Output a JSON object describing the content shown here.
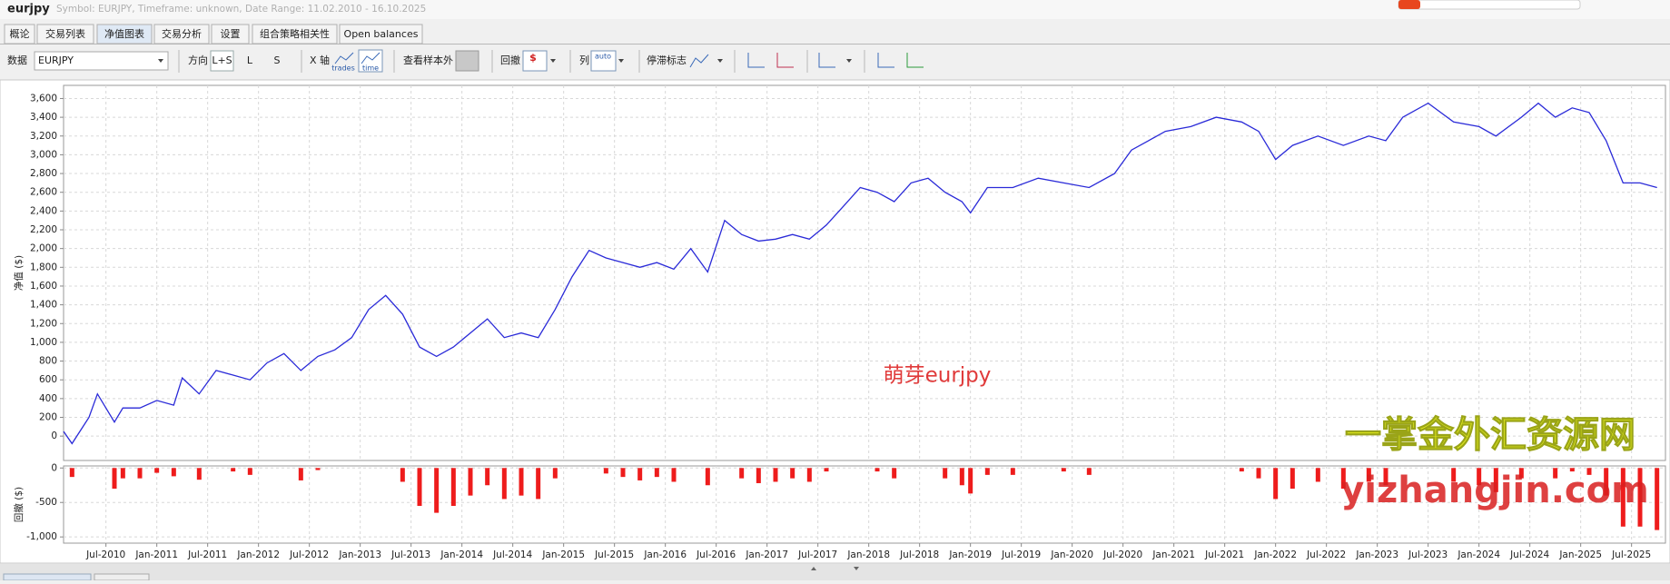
{
  "header": {
    "title": "eurjpy",
    "subtitle": "Symbol: EURJPY, Timeframe: unknown, Date Range: 11.02.2010 - 16.10.2025"
  },
  "tabs": [
    "概论",
    "交易列表",
    "净值图表",
    "交易分析",
    "设置",
    "组合策略相关性",
    "Open balances"
  ],
  "toolbar": {
    "data_label": "数据",
    "symbol": "EURJPY",
    "direction_label": "方向",
    "directions": [
      "L+S",
      "L",
      "S"
    ],
    "x_axis_label": "X 轴",
    "x_axis_options": [
      "trades",
      "time"
    ],
    "out_of_sample_label": "查看样本外",
    "drawdown_label": "回撤",
    "drawdown_icon": "$",
    "column_label": "列",
    "column_option": "auto",
    "stagnation_label": "停滞标志"
  },
  "chart_data": [
    {
      "type": "line",
      "y_label": "净值 ($)",
      "color": "#2a2ad8",
      "grid": true,
      "x": [
        "2010-02",
        "2010-03",
        "2010-05",
        "2010-06",
        "2010-08",
        "2010-09",
        "2010-11",
        "2011-01",
        "2011-03",
        "2011-04",
        "2011-06",
        "2011-08",
        "2011-10",
        "2011-12",
        "2012-02",
        "2012-04",
        "2012-06",
        "2012-08",
        "2012-10",
        "2012-12",
        "2013-02",
        "2013-04",
        "2013-06",
        "2013-08",
        "2013-10",
        "2013-12",
        "2014-02",
        "2014-04",
        "2014-06",
        "2014-08",
        "2014-10",
        "2014-12",
        "2015-02",
        "2015-04",
        "2015-06",
        "2015-08",
        "2015-10",
        "2015-12",
        "2016-02",
        "2016-04",
        "2016-06",
        "2016-08",
        "2016-10",
        "2016-12",
        "2017-02",
        "2017-04",
        "2017-06",
        "2017-08",
        "2017-10",
        "2017-12",
        "2018-02",
        "2018-04",
        "2018-06",
        "2018-08",
        "2018-10",
        "2018-12",
        "2019-01",
        "2019-03",
        "2019-06",
        "2019-09",
        "2019-12",
        "2020-03",
        "2020-06",
        "2020-08",
        "2020-10",
        "2020-12",
        "2021-03",
        "2021-06",
        "2021-09",
        "2021-11",
        "2022-01",
        "2022-03",
        "2022-06",
        "2022-09",
        "2022-12",
        "2023-02",
        "2023-04",
        "2023-07",
        "2023-10",
        "2024-01",
        "2024-03",
        "2024-06",
        "2024-08",
        "2024-10",
        "2024-12",
        "2025-02",
        "2025-04",
        "2025-06",
        "2025-08",
        "2025-10"
      ],
      "values": [
        50,
        -80,
        200,
        450,
        150,
        300,
        300,
        380,
        330,
        620,
        450,
        700,
        650,
        600,
        780,
        880,
        700,
        850,
        920,
        1050,
        1350,
        1500,
        1300,
        950,
        850,
        950,
        1100,
        1250,
        1050,
        1100,
        1050,
        1350,
        1700,
        1980,
        1900,
        1850,
        1800,
        1850,
        1780,
        2000,
        1750,
        2300,
        2150,
        2080,
        2100,
        2150,
        2100,
        2250,
        2450,
        2650,
        2600,
        2500,
        2700,
        2750,
        2600,
        2500,
        2380,
        2650,
        2650,
        2750,
        2700,
        2650,
        2800,
        3050,
        3150,
        3250,
        3300,
        3400,
        3350,
        3250,
        2950,
        3100,
        3200,
        3100,
        3200,
        3150,
        3400,
        3550,
        3350,
        3300,
        3200,
        3400,
        3550,
        3400,
        3500,
        3450,
        3150,
        2700,
        2700,
        2650
      ],
      "xlim": [
        "2010-02",
        "2025-11"
      ],
      "ylim": [
        -260,
        3740
      ],
      "yticks": [
        0,
        200,
        400,
        600,
        800,
        {
          "value": 1000,
          "label": "1,000"
        },
        {
          "value": 1200,
          "label": "1,200"
        },
        {
          "value": 1400,
          "label": "1,400"
        },
        {
          "value": 1600,
          "label": "1,600"
        },
        {
          "value": 1800,
          "label": "1,800"
        },
        {
          "value": 2000,
          "label": "2,000"
        },
        {
          "value": 2200,
          "label": "2,200"
        },
        {
          "value": 2400,
          "label": "2,400"
        },
        {
          "value": 2600,
          "label": "2,600"
        },
        {
          "value": 2800,
          "label": "2,800"
        },
        {
          "value": 3000,
          "label": "3,000"
        },
        {
          "value": 3200,
          "label": "3,200"
        },
        {
          "value": 3400,
          "label": "3,400"
        },
        {
          "value": 3600,
          "label": "3,600"
        }
      ]
    },
    {
      "type": "bar",
      "y_label": "回撤 ($)",
      "color": "#ee1c1c",
      "grid": true,
      "x": [
        "2010-02",
        "2010-03",
        "2010-05",
        "2010-06",
        "2010-08",
        "2010-09",
        "2010-11",
        "2011-01",
        "2011-03",
        "2011-04",
        "2011-06",
        "2011-08",
        "2011-10",
        "2011-12",
        "2012-02",
        "2012-04",
        "2012-06",
        "2012-08",
        "2012-10",
        "2012-12",
        "2013-02",
        "2013-04",
        "2013-06",
        "2013-08",
        "2013-10",
        "2013-12",
        "2014-02",
        "2014-04",
        "2014-06",
        "2014-08",
        "2014-10",
        "2014-12",
        "2015-02",
        "2015-04",
        "2015-06",
        "2015-08",
        "2015-10",
        "2015-12",
        "2016-02",
        "2016-04",
        "2016-06",
        "2016-08",
        "2016-10",
        "2016-12",
        "2017-02",
        "2017-04",
        "2017-06",
        "2017-08",
        "2017-10",
        "2017-12",
        "2018-02",
        "2018-04",
        "2018-06",
        "2018-08",
        "2018-10",
        "2018-12",
        "2019-01",
        "2019-03",
        "2019-06",
        "2019-09",
        "2019-12",
        "2020-03",
        "2020-06",
        "2020-08",
        "2020-10",
        "2020-12",
        "2021-03",
        "2021-06",
        "2021-09",
        "2021-11",
        "2022-01",
        "2022-03",
        "2022-06",
        "2022-09",
        "2022-12",
        "2023-02",
        "2023-04",
        "2023-07",
        "2023-10",
        "2024-01",
        "2024-03",
        "2024-06",
        "2024-08",
        "2024-10",
        "2024-12",
        "2025-02",
        "2025-04",
        "2025-06",
        "2025-08",
        "2025-10"
      ],
      "values": [
        0,
        -130,
        0,
        0,
        -300,
        -150,
        -150,
        -70,
        -120,
        0,
        -170,
        0,
        -50,
        -100,
        0,
        0,
        -180,
        -30,
        0,
        0,
        0,
        0,
        -200,
        -550,
        -650,
        -550,
        -400,
        -250,
        -450,
        -400,
        -450,
        -150,
        0,
        0,
        -80,
        -130,
        -180,
        -130,
        -200,
        0,
        -250,
        0,
        -150,
        -220,
        -200,
        -150,
        -200,
        -50,
        0,
        0,
        -50,
        -150,
        0,
        0,
        -150,
        -250,
        -370,
        -100,
        -100,
        0,
        -50,
        -100,
        0,
        0,
        0,
        0,
        0,
        0,
        -50,
        -150,
        -450,
        -300,
        -200,
        -300,
        -200,
        -250,
        0,
        0,
        -200,
        -250,
        -350,
        -150,
        0,
        -150,
        -50,
        -100,
        -400,
        -850,
        -850,
        -900
      ],
      "xlim": [
        "2010-02",
        "2025-11"
      ],
      "ylim": [
        -1090,
        30
      ],
      "yticks": [
        0,
        -500,
        {
          "value": -1000,
          "label": "-1,000"
        }
      ],
      "xticks": [
        {
          "value": "2010-07",
          "label": "Jul-2010"
        },
        {
          "value": "2011-01",
          "label": "Jan-2011"
        },
        {
          "value": "2011-07",
          "label": "Jul-2011"
        },
        {
          "value": "2012-01",
          "label": "Jan-2012"
        },
        {
          "value": "2012-07",
          "label": "Jul-2012"
        },
        {
          "value": "2013-01",
          "label": "Jan-2013"
        },
        {
          "value": "2013-07",
          "label": "Jul-2013"
        },
        {
          "value": "2014-01",
          "label": "Jan-2014"
        },
        {
          "value": "2014-07",
          "label": "Jul-2014"
        },
        {
          "value": "2015-01",
          "label": "Jan-2015"
        },
        {
          "value": "2015-07",
          "label": "Jul-2015"
        },
        {
          "value": "2016-01",
          "label": "Jan-2016"
        },
        {
          "value": "2016-07",
          "label": "Jul-2016"
        },
        {
          "value": "2017-01",
          "label": "Jan-2017"
        },
        {
          "value": "2017-07",
          "label": "Jul-2017"
        },
        {
          "value": "2018-01",
          "label": "Jan-2018"
        },
        {
          "value": "2018-07",
          "label": "Jul-2018"
        },
        {
          "value": "2019-01",
          "label": "Jan-2019"
        },
        {
          "value": "2019-07",
          "label": "Jul-2019"
        },
        {
          "value": "2020-01",
          "label": "Jan-2020"
        },
        {
          "value": "2020-07",
          "label": "Jul-2020"
        },
        {
          "value": "2021-01",
          "label": "Jan-2021"
        },
        {
          "value": "2021-07",
          "label": "Jul-2021"
        },
        {
          "value": "2022-01",
          "label": "Jan-2022"
        },
        {
          "value": "2022-07",
          "label": "Jul-2022"
        },
        {
          "value": "2023-01",
          "label": "Jan-2023"
        },
        {
          "value": "2023-07",
          "label": "Jul-2023"
        },
        {
          "value": "2024-01",
          "label": "Jan-2024"
        },
        {
          "value": "2024-07",
          "label": "Jul-2024"
        },
        {
          "value": "2025-01",
          "label": "Jan-2025"
        },
        {
          "value": "2025-07",
          "label": "Jul-2025"
        }
      ]
    }
  ],
  "watermarks": [
    "萌芽eurjpy",
    "一掌金外汇资源网",
    "yizhangjin.com"
  ]
}
